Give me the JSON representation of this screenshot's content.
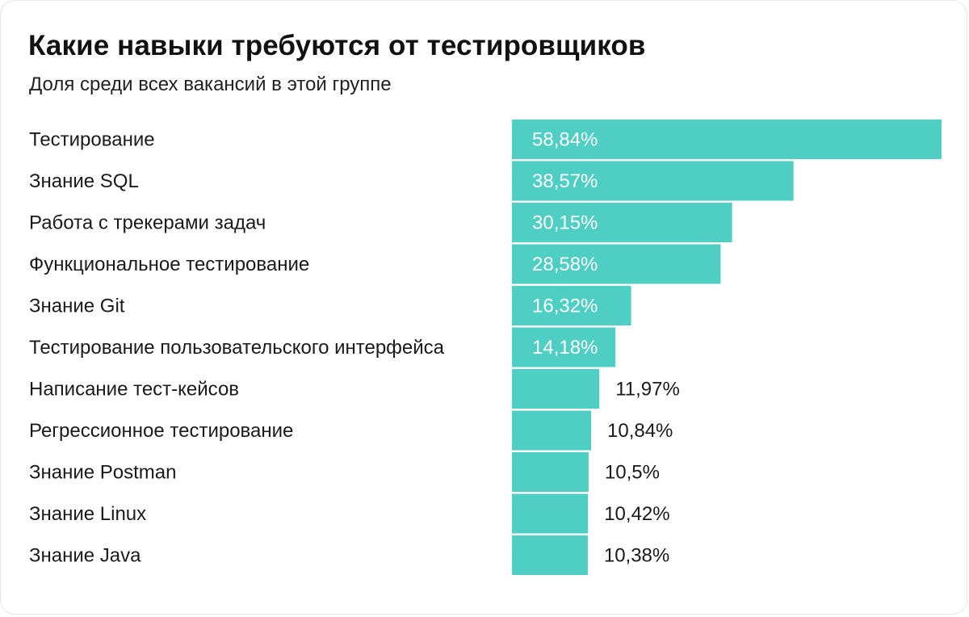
{
  "chart_data": {
    "type": "bar",
    "orientation": "horizontal",
    "title": "Какие навыки требуются от тестировщиков",
    "subtitle": "Доля среди всех вакансий в этой группе",
    "categories": [
      "Тестирование",
      "Знание SQL",
      "Работа с трекерами задач",
      "Функциональное тестирование",
      "Знание Git",
      "Тестирование пользовательского интерфейса",
      "Написание тест-кейсов",
      "Регрессионное тестирование",
      "Знание Postman",
      "Знание Linux",
      "Знание Java"
    ],
    "values": [
      58.84,
      38.57,
      30.15,
      28.58,
      16.32,
      14.18,
      11.97,
      10.84,
      10.5,
      10.42,
      10.38
    ],
    "value_labels": [
      "58,84%",
      "38,57%",
      "30,15%",
      "28,58%",
      "16,32%",
      "14,18%",
      "11,97%",
      "10,84%",
      "10,5%",
      "10,42%",
      "10,38%"
    ],
    "unit": "%",
    "xlim": [
      0,
      58.84
    ],
    "grid": false,
    "legend": "none",
    "colors": {
      "bar": "#4fcfc4",
      "label_inside": "#ffffff",
      "label_outside": "#1a1a1a"
    }
  }
}
